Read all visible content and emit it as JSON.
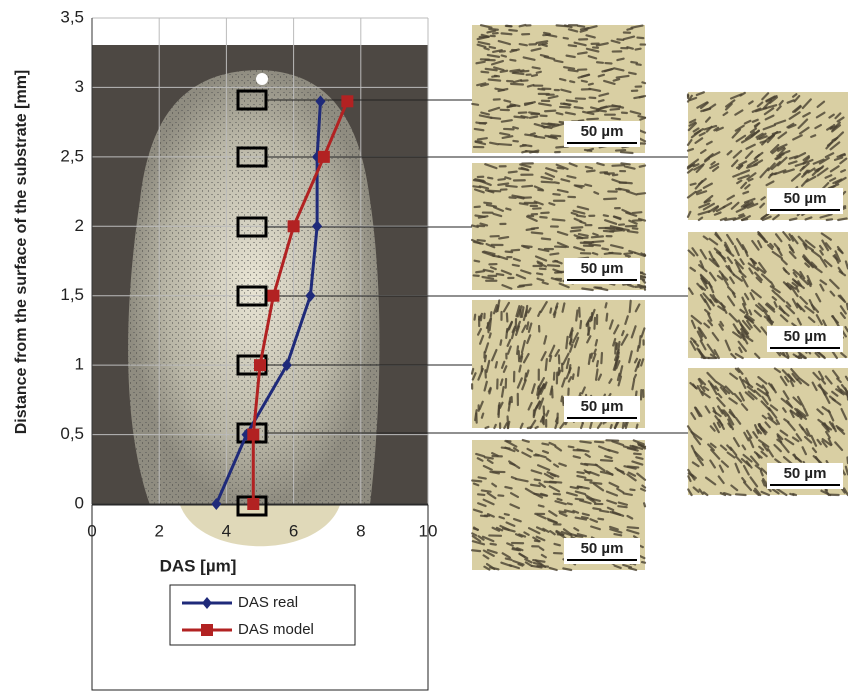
{
  "chart_data": {
    "type": "line",
    "x_label": "DAS [µm]",
    "y_label": "Distance from the surface of the substrate [mm]",
    "xlim": [
      0,
      10
    ],
    "xticks": [
      0,
      2,
      4,
      6,
      8,
      10
    ],
    "ylim": [
      0,
      3.5
    ],
    "yticks": [
      0,
      {
        "value": 0.5,
        "label": "0,5"
      },
      1,
      {
        "value": 1.5,
        "label": "1,5"
      },
      2,
      {
        "value": 2.5,
        "label": "2,5"
      },
      3,
      {
        "value": 3.5,
        "label": "3,5"
      }
    ],
    "grid": true,
    "series": [
      {
        "name": "DAS real",
        "color": "#1f2a7a",
        "marker": "diamond",
        "x": [
          3.7,
          4.6,
          5.8,
          6.5,
          6.7,
          6.7,
          6.8
        ],
        "y": [
          0,
          0.5,
          1,
          1.5,
          2,
          2.5,
          2.9
        ]
      },
      {
        "name": "DAS model",
        "color": "#b22222",
        "marker": "square",
        "x": [
          4.8,
          4.8,
          5.0,
          5.4,
          6.0,
          6.9,
          7.6
        ],
        "y": [
          0,
          0.5,
          1,
          1.5,
          2,
          2.5,
          2.9
        ]
      }
    ]
  },
  "micrographs": [
    {
      "scale": "50 µm"
    },
    {
      "scale": "50 µm"
    },
    {
      "scale": "50 µm"
    },
    {
      "scale": "50 µm"
    },
    {
      "scale": "50 µm"
    },
    {
      "scale": "50 µm"
    },
    {
      "scale": "50 µm"
    }
  ]
}
